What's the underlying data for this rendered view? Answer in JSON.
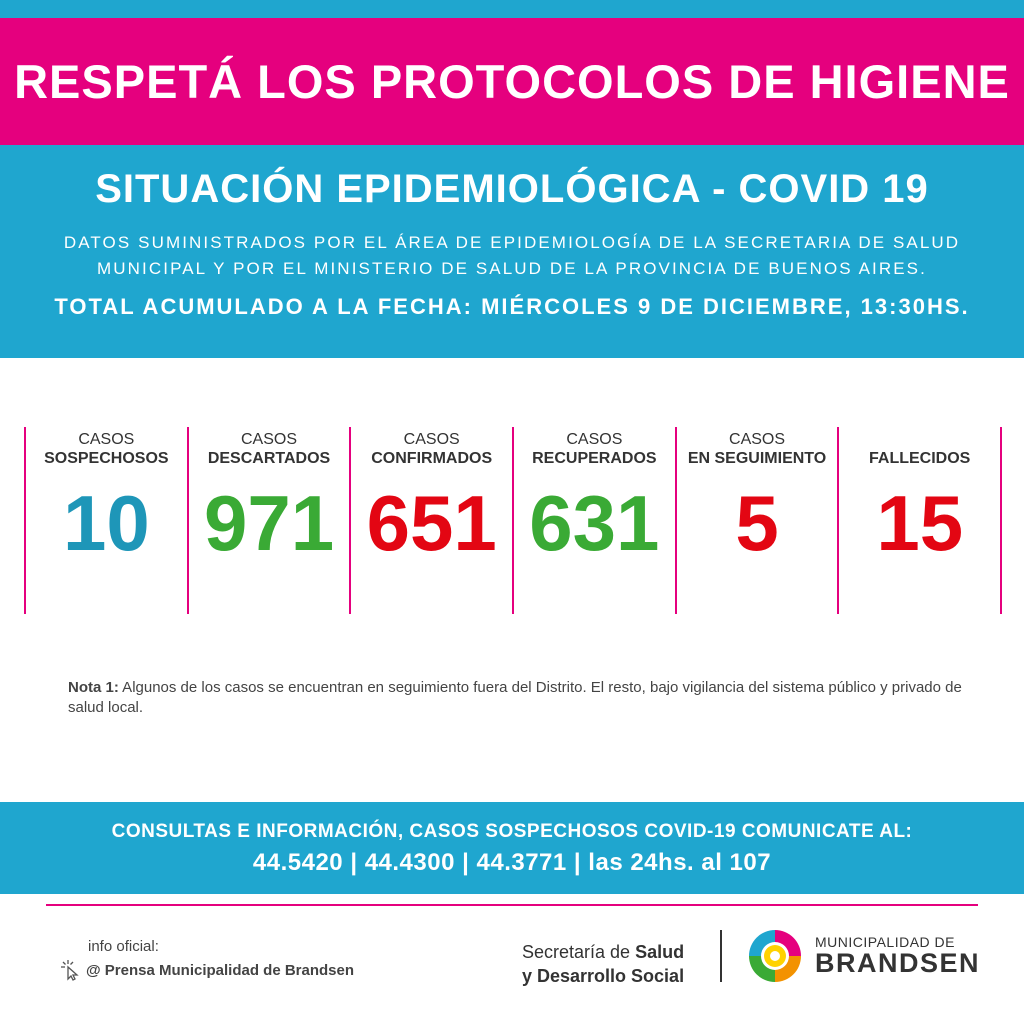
{
  "banner": {
    "title": "RESPETÁ LOS PROTOCOLOS DE HIGIENE"
  },
  "header": {
    "title": "SITUACIÓN EPIDEMIOLÓGICA - COVID 19",
    "source_line1": "DATOS SUMINISTRADOS POR EL ÁREA DE EPIDEMIOLOGÍA DE LA SECRETARIA DE SALUD",
    "source_line2": "MUNICIPAL Y POR EL MINISTERIO DE SALUD DE LA PROVINCIA DE BUENOS AIRES.",
    "total": "TOTAL ACUMULADO A LA FECHA: MIÉRCOLES 9 DE DICIEMBRE, 13:30HS."
  },
  "stats": [
    {
      "line1": "CASOS",
      "line2": "SOSPECHOSOS",
      "value": "10",
      "color": "#1e96b8"
    },
    {
      "line1": "CASOS",
      "line2": "DESCARTADOS",
      "value": "971",
      "color": "#3aaa35"
    },
    {
      "line1": "CASOS",
      "line2": "CONFIRMADOS",
      "value": "651",
      "color": "#e30613"
    },
    {
      "line1": "CASOS",
      "line2": "RECUPERADOS",
      "value": "631",
      "color": "#3aaa35"
    },
    {
      "line1": "CASOS",
      "line2": "EN SEGUIMIENTO",
      "value": "5",
      "color": "#e30613"
    },
    {
      "line1": "",
      "line2": "FALLECIDOS",
      "value": "15",
      "color": "#e30613"
    }
  ],
  "note": {
    "label": "Nota 1:",
    "text": " Algunos de los casos se encuentran en seguimiento fuera del Distrito. El resto, bajo vigilancia del sistema público y privado de salud local."
  },
  "contact": {
    "line1": "CONSULTAS E INFORMACIÓN, CASOS SOSPECHOSOS COVID-19 COMUNICATE AL:",
    "line2": "44.5420 | 44.4300 | 44.3771 | las 24hs. al 107"
  },
  "footer": {
    "info_label": "info oficial:",
    "press": "@ Prensa Municipalidad de Brandsen",
    "secretaria_prefix1": "Secretaría de ",
    "secretaria_bold1": "Salud",
    "secretaria_bold2": "y Desarrollo Social",
    "muni_line1": "MUNICIPALIDAD DE",
    "muni_line2": "BRANDSEN"
  },
  "colors": {
    "pink": "#e5007e",
    "blue": "#1fa6cf"
  }
}
